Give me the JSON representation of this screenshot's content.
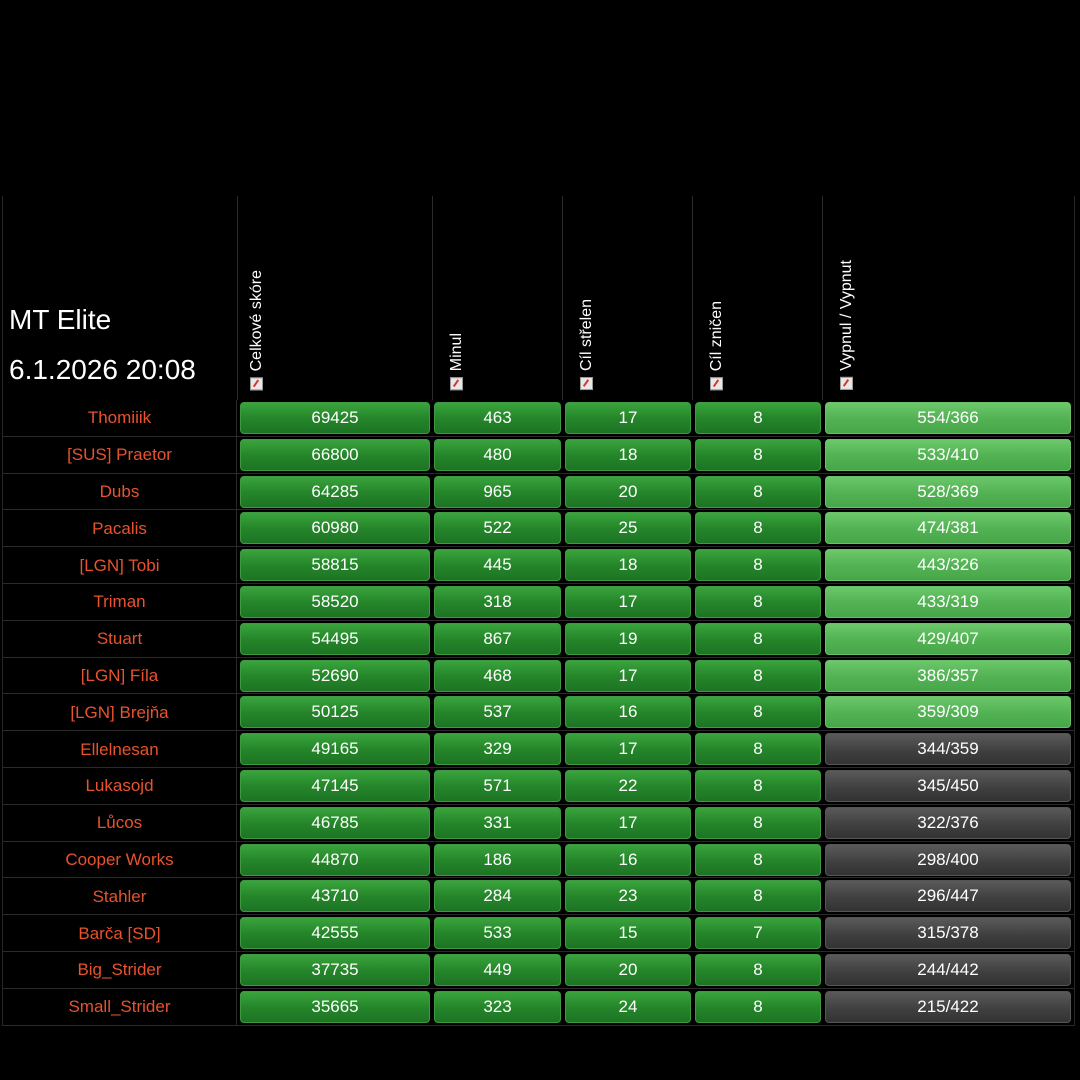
{
  "title": "MT Elite",
  "datetime": "6.1.2026 20:08",
  "columns": [
    "Celkové skóre",
    "Minul",
    "Cíl střelen",
    "Cíl zničen",
    "Vypnul / Vypnut"
  ],
  "column_icon": "sort-icon",
  "colors": {
    "name": "#e8532d",
    "green": "#25862a",
    "light_green": "#53b354",
    "grey": "#3e3e3e"
  },
  "rows": [
    {
      "name": "Thomiiik",
      "score": "69425",
      "minul": "463",
      "strelen": "17",
      "znicen": "8",
      "vypnul": "554/366",
      "vypnul_color": "light-green"
    },
    {
      "name": "[SUS] Praetor",
      "score": "66800",
      "minul": "480",
      "strelen": "18",
      "znicen": "8",
      "vypnul": "533/410",
      "vypnul_color": "light-green"
    },
    {
      "name": "Dubs",
      "score": "64285",
      "minul": "965",
      "strelen": "20",
      "znicen": "8",
      "vypnul": "528/369",
      "vypnul_color": "light-green"
    },
    {
      "name": "Pacalis",
      "score": "60980",
      "minul": "522",
      "strelen": "25",
      "znicen": "8",
      "vypnul": "474/381",
      "vypnul_color": "light-green"
    },
    {
      "name": "[LGN] Tobi",
      "score": "58815",
      "minul": "445",
      "strelen": "18",
      "znicen": "8",
      "vypnul": "443/326",
      "vypnul_color": "light-green"
    },
    {
      "name": "Triman",
      "score": "58520",
      "minul": "318",
      "strelen": "17",
      "znicen": "8",
      "vypnul": "433/319",
      "vypnul_color": "light-green"
    },
    {
      "name": "Stuart",
      "score": "54495",
      "minul": "867",
      "strelen": "19",
      "znicen": "8",
      "vypnul": "429/407",
      "vypnul_color": "light-green"
    },
    {
      "name": "[LGN] Fíla",
      "score": "52690",
      "minul": "468",
      "strelen": "17",
      "znicen": "8",
      "vypnul": "386/357",
      "vypnul_color": "light-green"
    },
    {
      "name": "[LGN] Brejňa",
      "score": "50125",
      "minul": "537",
      "strelen": "16",
      "znicen": "8",
      "vypnul": "359/309",
      "vypnul_color": "light-green"
    },
    {
      "name": "Ellelnesan",
      "score": "49165",
      "minul": "329",
      "strelen": "17",
      "znicen": "8",
      "vypnul": "344/359",
      "vypnul_color": "grey"
    },
    {
      "name": "Lukasojd",
      "score": "47145",
      "minul": "571",
      "strelen": "22",
      "znicen": "8",
      "vypnul": "345/450",
      "vypnul_color": "grey"
    },
    {
      "name": "Lůcos",
      "score": "46785",
      "minul": "331",
      "strelen": "17",
      "znicen": "8",
      "vypnul": "322/376",
      "vypnul_color": "grey"
    },
    {
      "name": "Cooper Works",
      "score": "44870",
      "minul": "186",
      "strelen": "16",
      "znicen": "8",
      "vypnul": "298/400",
      "vypnul_color": "grey"
    },
    {
      "name": "Stahler",
      "score": "43710",
      "minul": "284",
      "strelen": "23",
      "znicen": "8",
      "vypnul": "296/447",
      "vypnul_color": "grey"
    },
    {
      "name": "Barča [SD]",
      "score": "42555",
      "minul": "533",
      "strelen": "15",
      "znicen": "7",
      "vypnul": "315/378",
      "vypnul_color": "grey"
    },
    {
      "name": "Big_Strider",
      "score": "37735",
      "minul": "449",
      "strelen": "20",
      "znicen": "8",
      "vypnul": "244/442",
      "vypnul_color": "grey"
    },
    {
      "name": "Small_Strider",
      "score": "35665",
      "minul": "323",
      "strelen": "24",
      "znicen": "8",
      "vypnul": "215/422",
      "vypnul_color": "grey"
    }
  ]
}
